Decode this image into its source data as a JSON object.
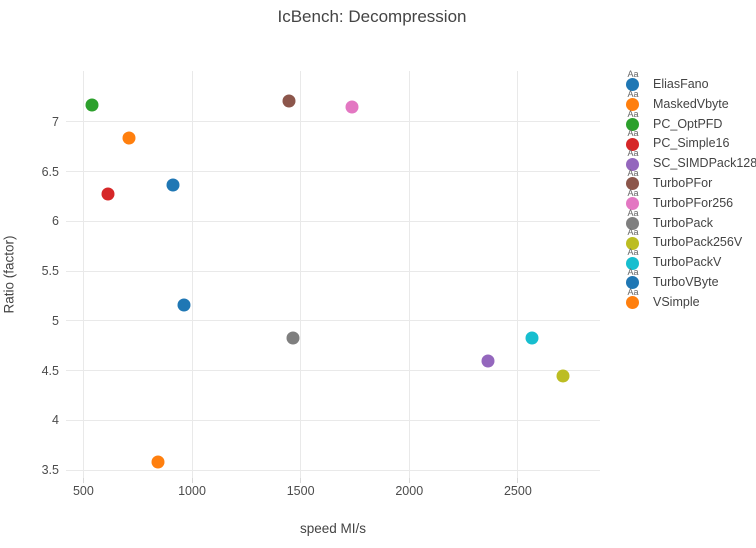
{
  "title": "IcBench: Decompression",
  "chart_data": {
    "type": "scatter",
    "title": "IcBench: Decompression",
    "xlabel": "speed MI/s",
    "ylabel": "Ratio (factor)",
    "xlim": [
      420,
      2878
    ],
    "ylim": [
      3.42,
      7.51
    ],
    "x_ticks": [
      500,
      1000,
      1500,
      2000,
      2500
    ],
    "y_ticks": [
      3.5,
      4,
      4.5,
      5,
      5.5,
      6,
      6.5,
      7
    ],
    "grid": true,
    "legend_position": "right",
    "legend_text_sample": "Aa",
    "marker_size_px": 13,
    "series": [
      {
        "name": "EliasFano",
        "color": "#1f77b4",
        "x": 913,
        "y": 6.36
      },
      {
        "name": "MaskedVbyte",
        "color": "#ff7f0e",
        "x": 844,
        "y": 3.58
      },
      {
        "name": "PC_OptPFD",
        "color": "#2ca02c",
        "x": 540,
        "y": 7.17
      },
      {
        "name": "PC_Simple16",
        "color": "#d62728",
        "x": 612,
        "y": 6.27
      },
      {
        "name": "SC_SIMDPack128",
        "color": "#9467bd",
        "x": 2363,
        "y": 4.6
      },
      {
        "name": "TurboPFor",
        "color": "#8c564b",
        "x": 1446,
        "y": 7.21
      },
      {
        "name": "TurboPFor256",
        "color": "#e377c2",
        "x": 1738,
        "y": 7.15
      },
      {
        "name": "TurboPack",
        "color": "#7f7f7f",
        "x": 1463,
        "y": 4.83
      },
      {
        "name": "TurboPack256V",
        "color": "#bcbd22",
        "x": 2706,
        "y": 4.44
      },
      {
        "name": "TurboPackV",
        "color": "#17becf",
        "x": 2563,
        "y": 4.83
      },
      {
        "name": "TurboVByte",
        "color": "#1f77b4",
        "x": 961,
        "y": 5.16
      },
      {
        "name": "VSimple",
        "color": "#ff7f0e",
        "x": 712,
        "y": 6.84
      }
    ]
  }
}
